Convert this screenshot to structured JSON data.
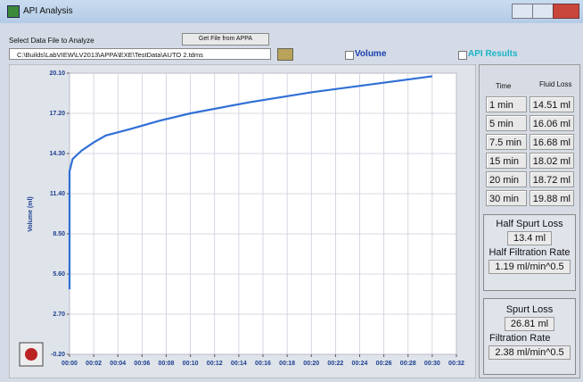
{
  "window": {
    "title": "API Analysis"
  },
  "file": {
    "label": "Select Data File to Analyze",
    "button": "Get File from APPA",
    "path": "C:\\Builds\\LabVIEW\\LV2013\\APPA\\EXE\\TestData\\AUTO 2.tdms"
  },
  "toggles": {
    "volume": "Volume",
    "api_results": "API Results"
  },
  "chart_data": {
    "type": "line",
    "y_label": "Volume (ml)",
    "x": [
      0,
      0,
      0.25,
      1,
      2,
      3,
      5,
      7.5,
      10,
      15,
      20,
      25,
      30
    ],
    "series": [
      {
        "color": "#2f6fd6",
        "values": [
          4.5,
          13.0,
          13.9,
          14.51,
          15.1,
          15.6,
          16.06,
          16.68,
          17.2,
          18.02,
          18.72,
          19.3,
          19.88
        ]
      }
    ],
    "xlim": [
      0,
      32
    ],
    "xticks": [
      {
        "value": 0,
        "label": "00:00"
      },
      {
        "value": 2,
        "label": "00:02"
      },
      {
        "value": 4,
        "label": "00:04"
      },
      {
        "value": 6,
        "label": "00:06"
      },
      {
        "value": 8,
        "label": "00:08"
      },
      {
        "value": 10,
        "label": "00:10"
      },
      {
        "value": 12,
        "label": "00:12"
      },
      {
        "value": 14,
        "label": "00:14"
      },
      {
        "value": 16,
        "label": "00:16"
      },
      {
        "value": 18,
        "label": "00:18"
      },
      {
        "value": 20,
        "label": "00:20"
      },
      {
        "value": 22,
        "label": "00:22"
      },
      {
        "value": 24,
        "label": "00:24"
      },
      {
        "value": 26,
        "label": "00:26"
      },
      {
        "value": 28,
        "label": "00:28"
      },
      {
        "value": 30,
        "label": "00:30"
      },
      {
        "value": 32,
        "label": "00:32"
      }
    ],
    "ylim": [
      -0.2,
      20.1
    ],
    "yticks": [
      {
        "value": -0.2,
        "label": "-0.20"
      },
      {
        "value": 2.7,
        "label": "2.70"
      },
      {
        "value": 5.6,
        "label": "5.60"
      },
      {
        "value": 8.5,
        "label": "8.50"
      },
      {
        "value": 11.4,
        "label": "11.40"
      },
      {
        "value": 14.3,
        "label": "14.30"
      },
      {
        "value": 17.2,
        "label": "17.20"
      },
      {
        "value": 20.1,
        "label": "20.10"
      }
    ],
    "grid": true
  },
  "results": {
    "header": [
      "Time",
      "Fluid Loss"
    ],
    "rows": [
      [
        "1 min",
        "14.51 ml"
      ],
      [
        "5 min",
        "16.06 ml"
      ],
      [
        "7.5 min",
        "16.68 ml"
      ],
      [
        "15 min",
        "18.02 ml"
      ],
      [
        "20 min",
        "18.72 ml"
      ],
      [
        "30 min",
        "19.88 ml"
      ]
    ],
    "half": {
      "title": "Half Spurt Loss",
      "value": "13.4 ml",
      "rate_label": "Half Filtration Rate",
      "rate": "1.19 ml/min^0.5"
    },
    "full": {
      "title": "Spurt Loss",
      "value": "26.81 ml",
      "rate_label": "Filtration Rate",
      "rate": "2.38 ml/min^0.5"
    }
  }
}
